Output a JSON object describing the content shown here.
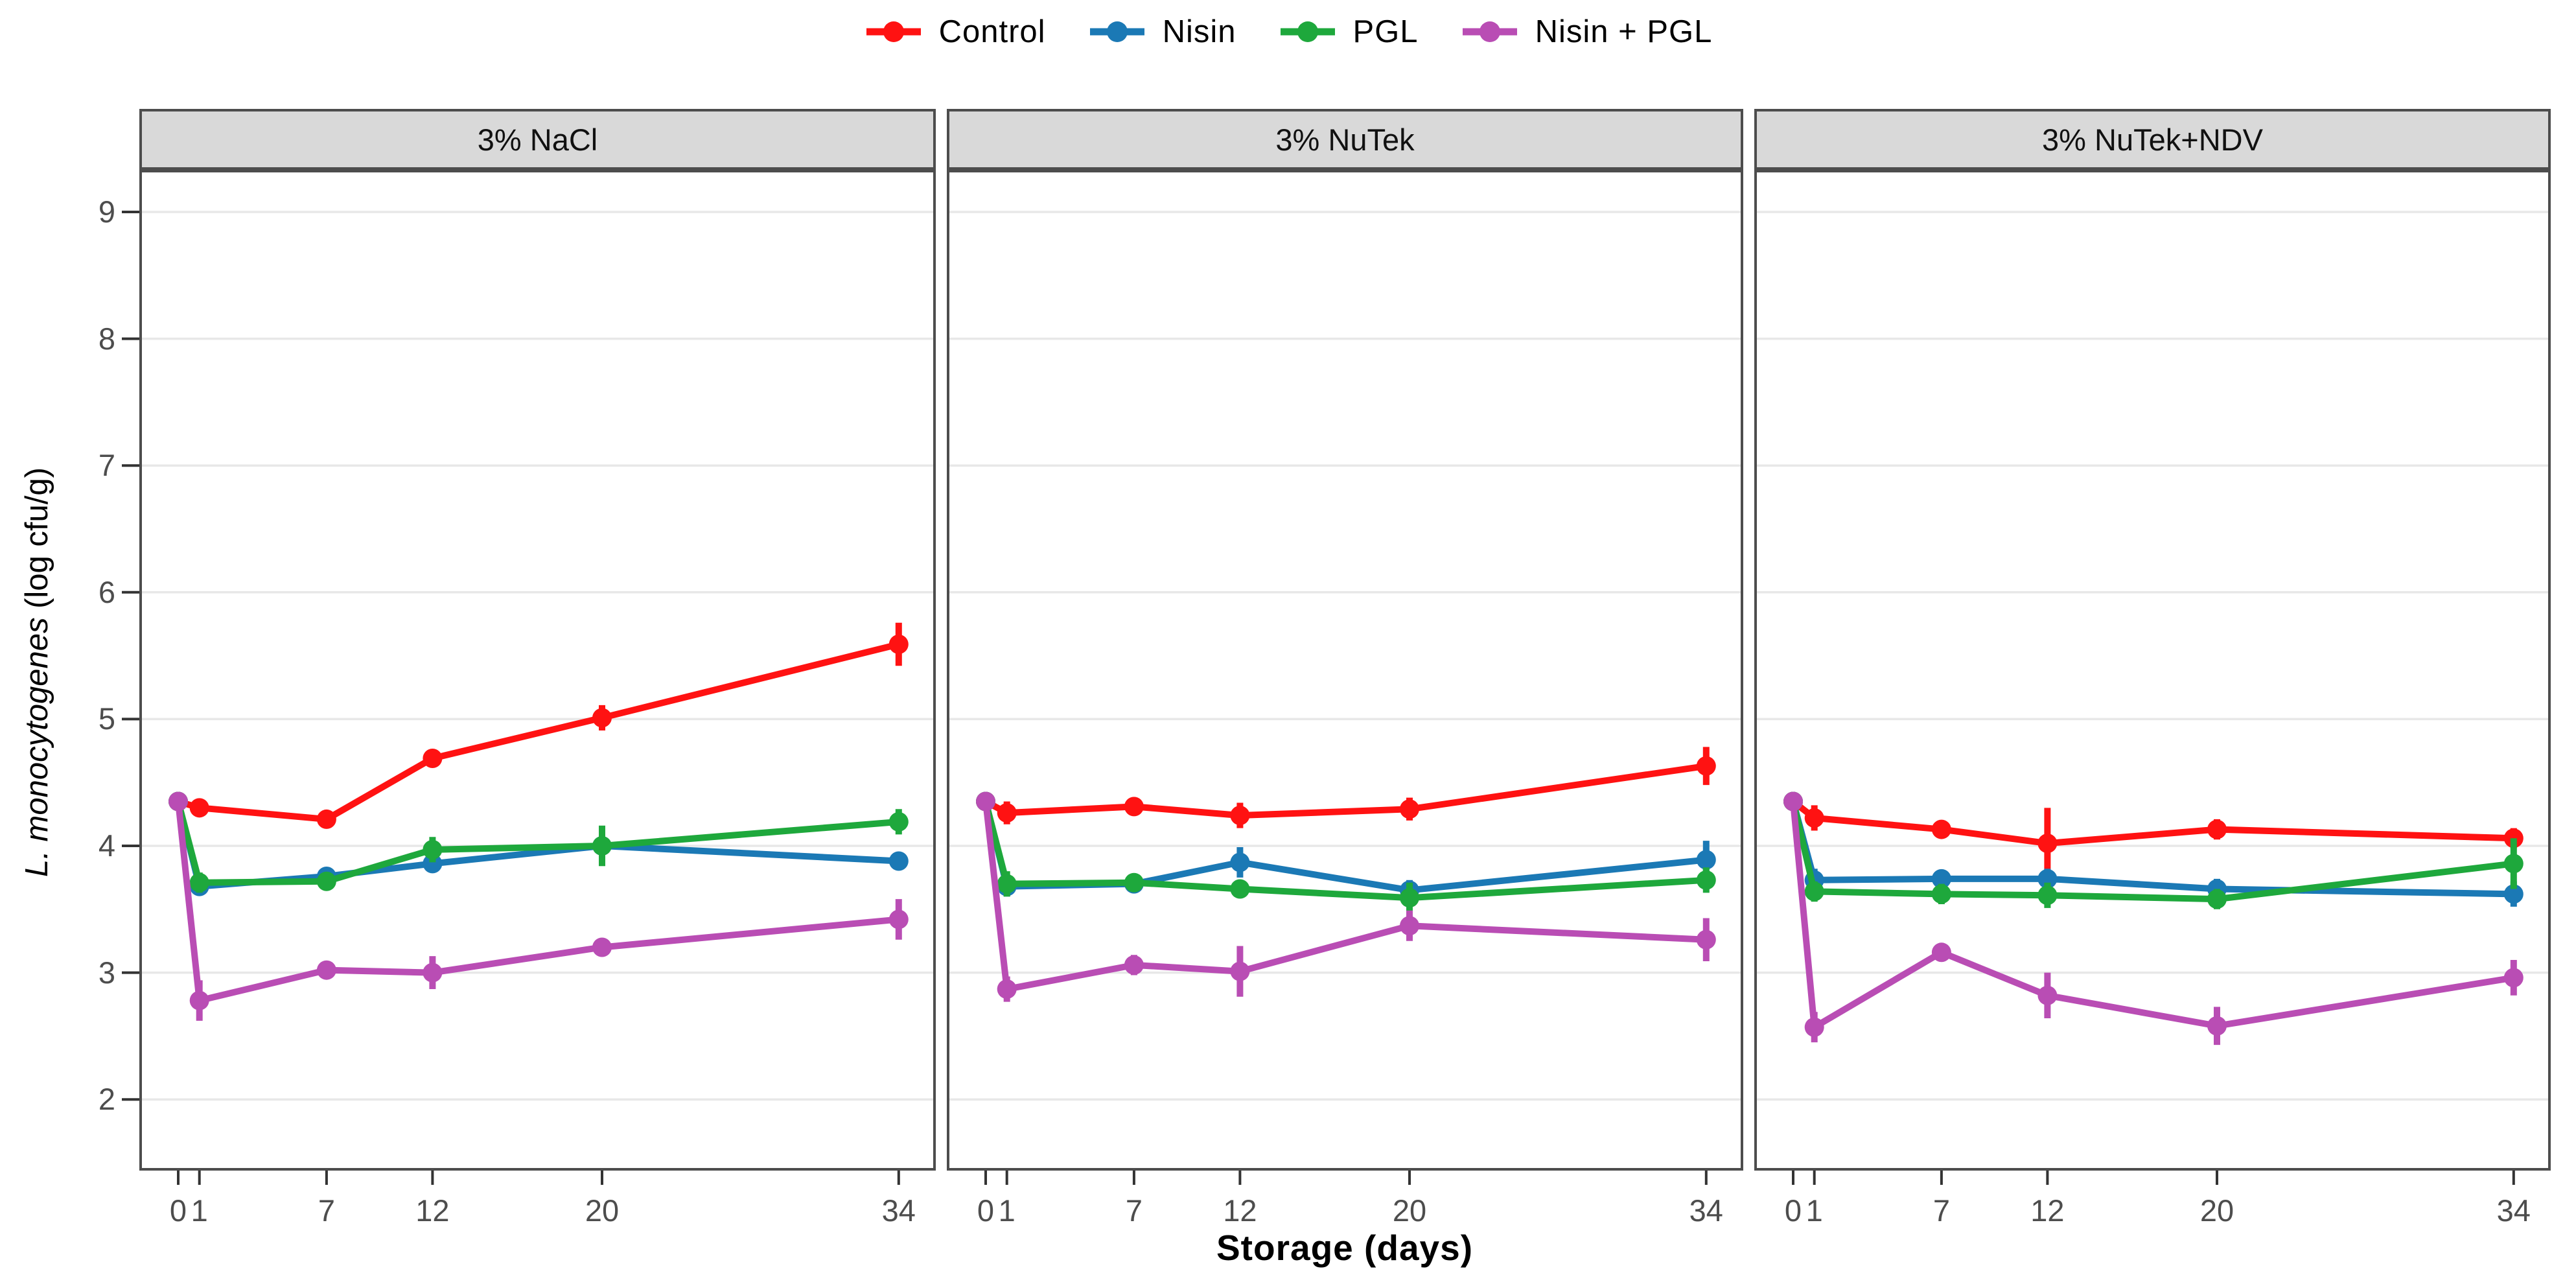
{
  "legend": {
    "items": [
      {
        "label": "Control",
        "color": "#FF1212"
      },
      {
        "label": "Nisin",
        "color": "#1B79B5"
      },
      {
        "label": "PGL",
        "color": "#1EA83C"
      },
      {
        "label": "Nisin + PGL",
        "color": "#B94DB4"
      }
    ]
  },
  "axes": {
    "x_title": "Storage (days)",
    "y_title_italic": "L. monocytogenes",
    "y_title_suffix": " (log cfu/g)",
    "tick_color": "#4D4D4D",
    "grid_color": "#E8E8E8",
    "border_color": "#4D4D4D",
    "strip_bg": "#D9D9D9"
  },
  "chart_data": {
    "type": "line",
    "x": [
      0,
      1,
      7,
      12,
      20,
      34
    ],
    "x_tick_labels": [
      "0",
      "1",
      "7",
      "12",
      "20",
      "34"
    ],
    "y_ticks": [
      2,
      3,
      4,
      5,
      6,
      7,
      8,
      9
    ],
    "ylim": [
      1.44,
      9.32
    ],
    "xlim": [
      -1.85,
      35.75
    ],
    "grid": "horizontal-major-only",
    "legend_position": "top-center",
    "x_title": "Storage (days)",
    "y_title": "L. monocytogenes (log cfu/g)",
    "facets": [
      {
        "title": "3% NaCl",
        "series": [
          {
            "name": "Control",
            "color": "#FF1212",
            "y": [
              4.35,
              4.3,
              4.21,
              4.69,
              5.01,
              5.59
            ],
            "err": [
              0.05,
              0.06,
              0.04,
              0.05,
              0.1,
              0.17
            ]
          },
          {
            "name": "Nisin",
            "color": "#1B79B5",
            "y": [
              4.35,
              3.68,
              3.76,
              3.86,
              4.0,
              3.88
            ],
            "err": [
              0.05,
              0.06,
              0.04,
              0.07,
              0.05,
              0.06
            ]
          },
          {
            "name": "PGL",
            "color": "#1EA83C",
            "y": [
              4.35,
              3.71,
              3.72,
              3.97,
              4.0,
              4.19
            ],
            "err": [
              0.05,
              0.08,
              0.04,
              0.1,
              0.16,
              0.1
            ]
          },
          {
            "name": "Nisin + PGL",
            "color": "#B94DB4",
            "y": [
              4.35,
              2.78,
              3.02,
              3.0,
              3.2,
              3.42
            ],
            "err": [
              0.05,
              0.16,
              0.05,
              0.13,
              0.06,
              0.16
            ]
          }
        ]
      },
      {
        "title": "3% NuTek",
        "series": [
          {
            "name": "Control",
            "color": "#FF1212",
            "y": [
              4.35,
              4.26,
              4.31,
              4.24,
              4.29,
              4.63
            ],
            "err": [
              0.05,
              0.09,
              0.05,
              0.1,
              0.09,
              0.15
            ]
          },
          {
            "name": "Nisin",
            "color": "#1B79B5",
            "y": [
              4.35,
              3.68,
              3.7,
              3.87,
              3.65,
              3.89
            ],
            "err": [
              0.05,
              0.08,
              0.05,
              0.12,
              0.08,
              0.15
            ]
          },
          {
            "name": "PGL",
            "color": "#1EA83C",
            "y": [
              4.35,
              3.7,
              3.71,
              3.66,
              3.59,
              3.73
            ],
            "err": [
              0.05,
              0.1,
              0.05,
              0.06,
              0.12,
              0.1
            ]
          },
          {
            "name": "Nisin + PGL",
            "color": "#B94DB4",
            "y": [
              4.35,
              2.87,
              3.06,
              3.01,
              3.37,
              3.26
            ],
            "err": [
              0.05,
              0.1,
              0.08,
              0.2,
              0.12,
              0.17
            ]
          }
        ]
      },
      {
        "title": "3% NuTek+NDV",
        "series": [
          {
            "name": "Control",
            "color": "#FF1212",
            "y": [
              4.35,
              4.22,
              4.13,
              4.02,
              4.13,
              4.06
            ],
            "err": [
              0.05,
              0.1,
              0.05,
              0.28,
              0.08,
              0.08
            ]
          },
          {
            "name": "Nisin",
            "color": "#1B79B5",
            "y": [
              4.35,
              3.73,
              3.74,
              3.74,
              3.66,
              3.62
            ],
            "err": [
              0.05,
              0.09,
              0.05,
              0.08,
              0.08,
              0.1
            ]
          },
          {
            "name": "PGL",
            "color": "#1EA83C",
            "y": [
              4.35,
              3.64,
              3.62,
              3.61,
              3.58,
              3.86
            ],
            "err": [
              0.05,
              0.08,
              0.08,
              0.1,
              0.08,
              0.2
            ]
          },
          {
            "name": "Nisin + PGL",
            "color": "#B94DB4",
            "y": [
              4.35,
              2.57,
              3.16,
              2.82,
              2.58,
              2.96
            ],
            "err": [
              0.05,
              0.12,
              0.05,
              0.18,
              0.15,
              0.14
            ]
          }
        ]
      }
    ]
  }
}
